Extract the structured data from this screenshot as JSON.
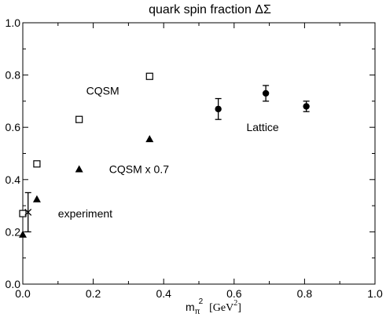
{
  "chart_data": {
    "type": "scatter",
    "title": "quark spin fraction ΔΣ",
    "xlabel": "m",
    "xlabel_sub": "π",
    "xlabel_sup": "2",
    "xlabel_unit": "[GeV",
    "xlabel_unit_sup": "2",
    "xlabel_unit_close": "]",
    "xlim": [
      0.0,
      1.0
    ],
    "ylim": [
      0.0,
      1.0
    ],
    "xticks": [
      0.0,
      0.2,
      0.4,
      0.6,
      0.8,
      1.0
    ],
    "yticks": [
      0.0,
      0.2,
      0.4,
      0.6,
      0.8,
      1.0
    ],
    "xtick_labels": [
      "0.0",
      "0.2",
      "0.4",
      "0.6",
      "0.8",
      "1.0"
    ],
    "ytick_labels": [
      "0.0",
      "0.2",
      "0.4",
      "0.6",
      "0.8",
      "1.0"
    ],
    "grid": false,
    "series": [
      {
        "name": "CQSM",
        "marker": "open-square",
        "points": [
          {
            "x": 0.0,
            "y": 0.27
          },
          {
            "x": 0.04,
            "y": 0.46
          },
          {
            "x": 0.16,
            "y": 0.63
          },
          {
            "x": 0.36,
            "y": 0.795
          }
        ]
      },
      {
        "name": "CQSM x 0.7",
        "marker": "filled-triangle",
        "points": [
          {
            "x": 0.0,
            "y": 0.19
          },
          {
            "x": 0.04,
            "y": 0.325
          },
          {
            "x": 0.16,
            "y": 0.44
          },
          {
            "x": 0.36,
            "y": 0.555
          }
        ]
      },
      {
        "name": "Lattice",
        "marker": "filled-circle",
        "points": [
          {
            "x": 0.555,
            "y": 0.67,
            "err": 0.04
          },
          {
            "x": 0.69,
            "y": 0.73,
            "err": 0.03
          },
          {
            "x": 0.805,
            "y": 0.68,
            "err": 0.02
          }
        ]
      },
      {
        "name": "experiment",
        "marker": "cross",
        "points": [
          {
            "x": 0.015,
            "y": 0.275,
            "err": 0.075
          }
        ]
      }
    ],
    "annotations": [
      {
        "text": "CQSM",
        "x": 0.18,
        "y": 0.74
      },
      {
        "text": "CQSM x 0.7",
        "x": 0.245,
        "y": 0.44
      },
      {
        "text": "Lattice",
        "x": 0.635,
        "y": 0.6
      },
      {
        "text": "experiment",
        "x": 0.1,
        "y": 0.27
      }
    ]
  }
}
